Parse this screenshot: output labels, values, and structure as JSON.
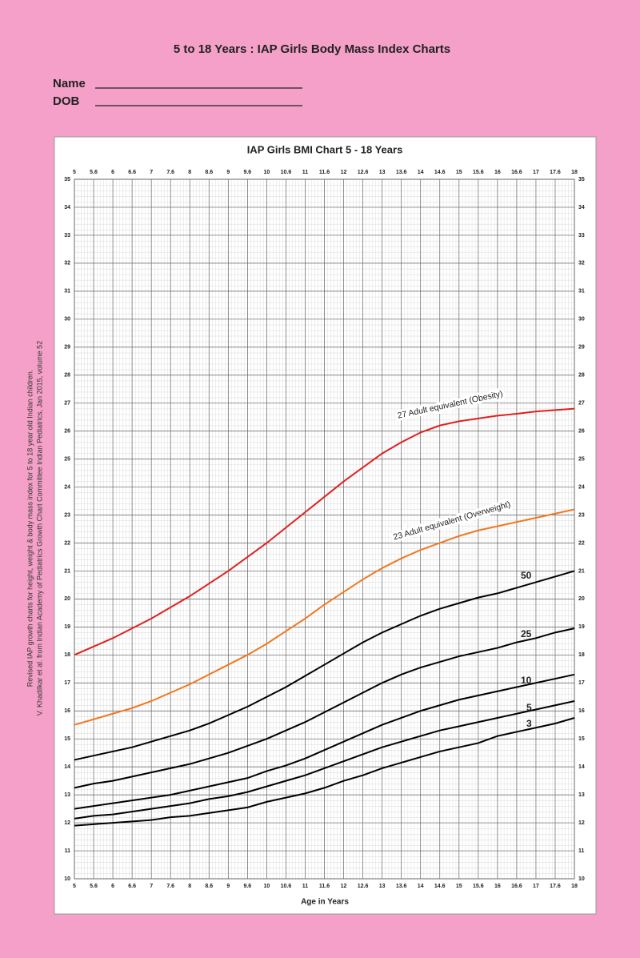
{
  "header": {
    "title": "5 to 18 Years : IAP Girls Body Mass Index Charts",
    "name": "Name",
    "dob": "DOB"
  },
  "footnote": [
    "Revised IAP growth charts for height, weight & body mass index for 5 to 18 year old Indian children.",
    "V. Khadilkar et al. from Indian Academy of Pediatrics Growth Chart Committee Indian Pediatrics, Jan 2015, volume 52"
  ],
  "chart_data": {
    "type": "line",
    "title": "IAP Girls BMI Chart 5 - 18 Years",
    "x_label": "Age in Years",
    "x": [
      5,
      5.5,
      6,
      6.5,
      7,
      7.5,
      8,
      8.5,
      9,
      9.5,
      10,
      10.5,
      11,
      11.5,
      12,
      12.5,
      13,
      13.5,
      14,
      14.5,
      15,
      15.5,
      16,
      16.5,
      17,
      17.5,
      18
    ],
    "series": [
      {
        "name": "27 Adult equivalent (Obesity)",
        "color": "#e02020",
        "values": [
          18.0,
          18.3,
          18.6,
          18.95,
          19.3,
          19.7,
          20.1,
          20.55,
          21.0,
          21.5,
          22.0,
          22.55,
          23.1,
          23.65,
          24.2,
          24.7,
          25.2,
          25.6,
          25.95,
          26.2,
          26.35,
          26.45,
          26.55,
          26.62,
          26.7,
          26.75,
          26.8
        ]
      },
      {
        "name": "23 Adult equivalent (Overweight)",
        "color": "#f07820",
        "values": [
          15.5,
          15.7,
          15.9,
          16.1,
          16.35,
          16.65,
          16.95,
          17.3,
          17.65,
          18.0,
          18.4,
          18.85,
          19.3,
          19.8,
          20.25,
          20.7,
          21.1,
          21.45,
          21.75,
          22.0,
          22.25,
          22.45,
          22.6,
          22.75,
          22.9,
          23.05,
          23.2
        ]
      },
      {
        "name": "50",
        "color": "#000000",
        "values": [
          14.25,
          14.4,
          14.55,
          14.7,
          14.9,
          15.1,
          15.3,
          15.55,
          15.85,
          16.15,
          16.5,
          16.85,
          17.25,
          17.65,
          18.05,
          18.45,
          18.8,
          19.1,
          19.4,
          19.65,
          19.85,
          20.05,
          20.2,
          20.4,
          20.6,
          20.8,
          21.0
        ]
      },
      {
        "name": "25",
        "color": "#000000",
        "values": [
          13.25,
          13.4,
          13.5,
          13.65,
          13.8,
          13.95,
          14.1,
          14.3,
          14.5,
          14.75,
          15.0,
          15.3,
          15.6,
          15.95,
          16.3,
          16.65,
          17.0,
          17.3,
          17.55,
          17.75,
          17.95,
          18.1,
          18.25,
          18.45,
          18.6,
          18.8,
          18.95
        ]
      },
      {
        "name": "10",
        "color": "#000000",
        "values": [
          12.5,
          12.6,
          12.7,
          12.8,
          12.9,
          13.0,
          13.15,
          13.3,
          13.45,
          13.6,
          13.85,
          14.05,
          14.3,
          14.6,
          14.9,
          15.2,
          15.5,
          15.75,
          16.0,
          16.2,
          16.4,
          16.55,
          16.7,
          16.85,
          17.0,
          17.15,
          17.3
        ]
      },
      {
        "name": "5",
        "color": "#000000",
        "values": [
          12.15,
          12.25,
          12.3,
          12.4,
          12.5,
          12.6,
          12.7,
          12.85,
          12.95,
          13.1,
          13.3,
          13.5,
          13.7,
          13.95,
          14.2,
          14.45,
          14.7,
          14.9,
          15.1,
          15.3,
          15.45,
          15.6,
          15.75,
          15.9,
          16.05,
          16.2,
          16.35
        ]
      },
      {
        "name": "3",
        "color": "#000000",
        "values": [
          11.9,
          11.95,
          12.0,
          12.05,
          12.1,
          12.2,
          12.25,
          12.35,
          12.45,
          12.55,
          12.75,
          12.9,
          13.05,
          13.25,
          13.5,
          13.7,
          13.95,
          14.15,
          14.35,
          14.55,
          14.7,
          14.85,
          15.1,
          15.25,
          15.4,
          15.55,
          15.75
        ]
      }
    ],
    "xlim": [
      5,
      18
    ],
    "ylim": [
      10,
      35
    ],
    "xticks": [
      5,
      {
        "value": 5.5,
        "label": "5.6"
      },
      6,
      {
        "value": 6.5,
        "label": "6.6"
      },
      7,
      {
        "value": 7.5,
        "label": "7.6"
      },
      8,
      {
        "value": 8.5,
        "label": "8.6"
      },
      9,
      {
        "value": 9.5,
        "label": "9.6"
      },
      10,
      {
        "value": 10.5,
        "label": "10.6"
      },
      11,
      {
        "value": 11.5,
        "label": "11.6"
      },
      12,
      {
        "value": 12.5,
        "label": "12.6"
      },
      13,
      {
        "value": 13.5,
        "label": "13.6"
      },
      14,
      {
        "value": 14.5,
        "label": "14.6"
      },
      15,
      {
        "value": 15.5,
        "label": "15.6"
      },
      16,
      {
        "value": 16.5,
        "label": "16.6"
      },
      17,
      {
        "value": 17.5,
        "label": "17.6"
      },
      18
    ],
    "yticks": [
      10,
      11,
      12,
      13,
      14,
      15,
      16,
      17,
      18,
      19,
      20,
      21,
      22,
      23,
      24,
      25,
      26,
      27,
      28,
      29,
      30,
      31,
      32,
      33,
      34,
      35
    ],
    "grid": true
  }
}
